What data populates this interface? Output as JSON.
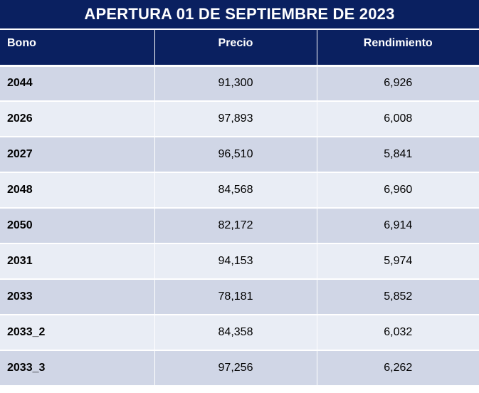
{
  "title": "APERTURA 01 DE SEPTIEMBRE DE 2023",
  "headers": {
    "bono": "Bono",
    "precio": "Precio",
    "rendimiento": "Rendimiento"
  },
  "rows": [
    {
      "bono": "2044",
      "precio": "91,300",
      "rendimiento": "6,926"
    },
    {
      "bono": "2026",
      "precio": "97,893",
      "rendimiento": "6,008"
    },
    {
      "bono": "2027",
      "precio": "96,510",
      "rendimiento": "5,841"
    },
    {
      "bono": "2048",
      "precio": "84,568",
      "rendimiento": "6,960"
    },
    {
      "bono": "2050",
      "precio": "82,172",
      "rendimiento": "6,914"
    },
    {
      "bono": "2031",
      "precio": "94,153",
      "rendimiento": "5,974"
    },
    {
      "bono": "2033",
      "precio": "78,181",
      "rendimiento": "5,852"
    },
    {
      "bono": "2033_2",
      "precio": "84,358",
      "rendimiento": "6,032"
    },
    {
      "bono": "2033_3",
      "precio": "97,256",
      "rendimiento": "6,262"
    }
  ],
  "colors": {
    "header_bg": "#0a2060",
    "row_dark": "#d0d6e6",
    "row_light": "#e9edf5"
  }
}
